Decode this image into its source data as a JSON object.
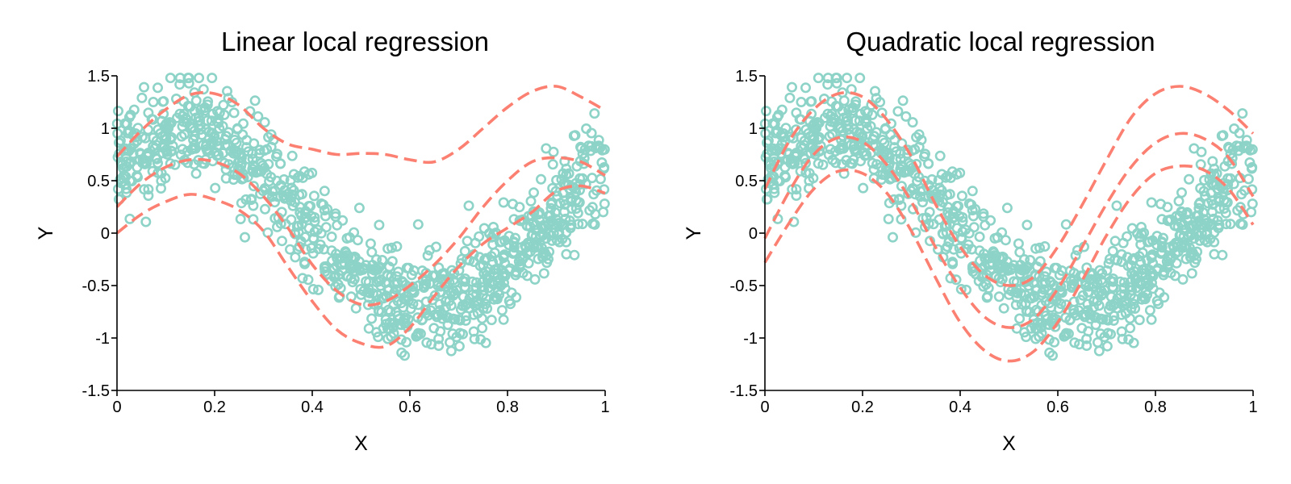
{
  "colors": {
    "points": "#8dd3c7",
    "curves": "#fb8072",
    "axes": "#000000"
  },
  "chart_data": [
    {
      "type": "scatter",
      "title": "Linear local regression",
      "xlabel": "X",
      "ylabel": "Y",
      "xlim": [
        0,
        1
      ],
      "ylim": [
        -1.5,
        1.5
      ],
      "xticks": [
        0,
        0.2,
        0.4,
        0.6,
        0.8,
        1
      ],
      "xtick_labels": [
        "0",
        "0.2",
        "0.4",
        "0.6",
        "0.8",
        "1"
      ],
      "yticks": [
        -1.5,
        -1,
        -0.5,
        0,
        0.5,
        1,
        1.5
      ],
      "ytick_labels": [
        "-1.5",
        "-1",
        "-0.5",
        "0",
        "0.5",
        "1",
        "1.5"
      ],
      "grid": false,
      "scatter_points": {
        "n": 1000,
        "mean": "0.9*sin(2*pi*x + 0.25*pi) + 0.2*sin(pi*x)",
        "noise_sd": 0.25
      },
      "curves": [
        {
          "x": [
            0,
            0.05,
            0.1,
            0.15,
            0.2,
            0.25,
            0.3,
            0.35,
            0.4,
            0.45,
            0.5,
            0.55,
            0.6,
            0.65,
            0.7,
            0.75,
            0.8,
            0.85,
            0.9,
            0.95,
            1
          ],
          "y": [
            0.73,
            0.98,
            1.18,
            1.32,
            1.33,
            1.22,
            1.0,
            0.85,
            0.8,
            0.75,
            0.76,
            0.75,
            0.7,
            0.68,
            0.8,
            1.0,
            1.2,
            1.35,
            1.4,
            1.3,
            1.17
          ]
        },
        {
          "x": [
            0,
            0.05,
            0.1,
            0.15,
            0.2,
            0.25,
            0.3,
            0.35,
            0.4,
            0.45,
            0.5,
            0.55,
            0.6,
            0.65,
            0.7,
            0.75,
            0.8,
            0.85,
            0.9,
            0.95,
            1
          ],
          "y": [
            0.25,
            0.48,
            0.63,
            0.7,
            0.68,
            0.57,
            0.35,
            0.05,
            -0.3,
            -0.55,
            -0.68,
            -0.65,
            -0.5,
            -0.3,
            -0.05,
            0.25,
            0.5,
            0.68,
            0.72,
            0.68,
            0.55
          ]
        },
        {
          "x": [
            0,
            0.05,
            0.1,
            0.15,
            0.2,
            0.25,
            0.3,
            0.35,
            0.4,
            0.45,
            0.5,
            0.55,
            0.6,
            0.65,
            0.7,
            0.75,
            0.8,
            0.85,
            0.9,
            0.95,
            1
          ],
          "y": [
            0.0,
            0.18,
            0.3,
            0.37,
            0.32,
            0.22,
            0.02,
            -0.32,
            -0.65,
            -0.92,
            -1.05,
            -1.08,
            -0.9,
            -0.6,
            -0.32,
            -0.1,
            0.05,
            0.2,
            0.4,
            0.45,
            0.38
          ]
        }
      ]
    },
    {
      "type": "scatter",
      "title": "Quadratic local regression",
      "xlabel": "X",
      "ylabel": "Y",
      "xlim": [
        0,
        1
      ],
      "ylim": [
        -1.5,
        1.5
      ],
      "xticks": [
        0,
        0.2,
        0.4,
        0.6,
        0.8,
        1
      ],
      "xtick_labels": [
        "0",
        "0.2",
        "0.4",
        "0.6",
        "0.8",
        "1"
      ],
      "yticks": [
        -1.5,
        -1,
        -0.5,
        0,
        0.5,
        1,
        1.5
      ],
      "ytick_labels": [
        "-1.5",
        "-1",
        "-0.5",
        "0",
        "0.5",
        "1",
        "1.5"
      ],
      "grid": false,
      "scatter_points": {
        "n": 1000,
        "mean": "0.9*sin(2*pi*x + 0.25*pi) + 0.2*sin(pi*x)",
        "noise_sd": 0.25
      },
      "curves": [
        {
          "x": [
            0,
            0.05,
            0.1,
            0.15,
            0.2,
            0.25,
            0.3,
            0.35,
            0.4,
            0.45,
            0.5,
            0.55,
            0.6,
            0.65,
            0.7,
            0.75,
            0.8,
            0.85,
            0.9,
            0.95,
            1
          ],
          "y": [
            0.42,
            0.88,
            1.18,
            1.33,
            1.3,
            1.08,
            0.73,
            0.27,
            -0.13,
            -0.4,
            -0.5,
            -0.42,
            -0.13,
            0.27,
            0.7,
            1.1,
            1.33,
            1.4,
            1.33,
            1.17,
            0.95
          ]
        },
        {
          "x": [
            0,
            0.05,
            0.1,
            0.15,
            0.2,
            0.25,
            0.3,
            0.35,
            0.4,
            0.45,
            0.5,
            0.55,
            0.6,
            0.65,
            0.7,
            0.75,
            0.8,
            0.85,
            0.9,
            0.95,
            1
          ],
          "y": [
            -0.05,
            0.4,
            0.75,
            0.91,
            0.87,
            0.65,
            0.3,
            -0.14,
            -0.52,
            -0.8,
            -0.9,
            -0.82,
            -0.53,
            -0.13,
            0.28,
            0.63,
            0.86,
            0.95,
            0.9,
            0.72,
            0.35
          ]
        },
        {
          "x": [
            0,
            0.05,
            0.1,
            0.15,
            0.2,
            0.25,
            0.3,
            0.35,
            0.4,
            0.45,
            0.5,
            0.55,
            0.6,
            0.65,
            0.7,
            0.75,
            0.8,
            0.85,
            0.9,
            0.95,
            1
          ],
          "y": [
            -0.28,
            0.1,
            0.42,
            0.59,
            0.57,
            0.38,
            0.02,
            -0.43,
            -0.85,
            -1.12,
            -1.22,
            -1.13,
            -0.85,
            -0.45,
            -0.02,
            0.34,
            0.57,
            0.64,
            0.6,
            0.42,
            0.08
          ]
        }
      ]
    }
  ]
}
